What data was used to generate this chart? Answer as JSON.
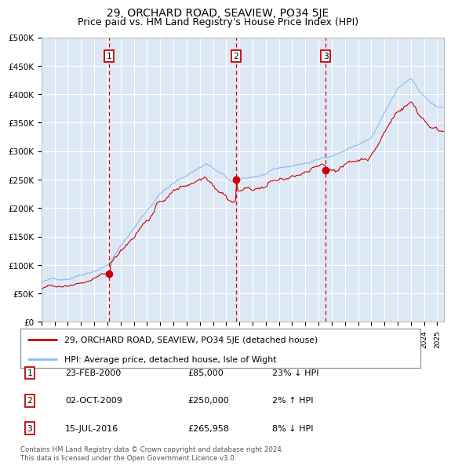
{
  "title": "29, ORCHARD ROAD, SEAVIEW, PO34 5JE",
  "subtitle": "Price paid vs. HM Land Registry's House Price Index (HPI)",
  "ylim": [
    0,
    500000
  ],
  "yticks": [
    0,
    50000,
    100000,
    150000,
    200000,
    250000,
    300000,
    350000,
    400000,
    450000,
    500000
  ],
  "xlim_start": 1995.0,
  "xlim_end": 2025.5,
  "sale_dates": [
    2000.12,
    2009.75,
    2016.54
  ],
  "sale_prices": [
    85000,
    250000,
    265958
  ],
  "sale_labels": [
    "1",
    "2",
    "3"
  ],
  "dashed_line_color": "#dd0000",
  "sale_marker_color": "#cc0000",
  "hpi_line_color": "#88bbee",
  "price_line_color": "#cc0000",
  "legend_label_price": "29, ORCHARD ROAD, SEAVIEW, PO34 5JE (detached house)",
  "legend_label_hpi": "HPI: Average price, detached house, Isle of Wight",
  "table_entries": [
    {
      "num": "1",
      "date": "23-FEB-2000",
      "price": "£85,000",
      "change": "23% ↓ HPI"
    },
    {
      "num": "2",
      "date": "02-OCT-2009",
      "price": "£250,000",
      "change": "2% ↑ HPI"
    },
    {
      "num": "3",
      "date": "15-JUL-2016",
      "price": "£265,958",
      "change": "8% ↓ HPI"
    }
  ],
  "footer": "Contains HM Land Registry data © Crown copyright and database right 2024.\nThis data is licensed under the Open Government Licence v3.0.",
  "plot_bg_color": "#dde8f5",
  "grid_color": "#ffffff",
  "title_fontsize": 10,
  "subtitle_fontsize": 9
}
